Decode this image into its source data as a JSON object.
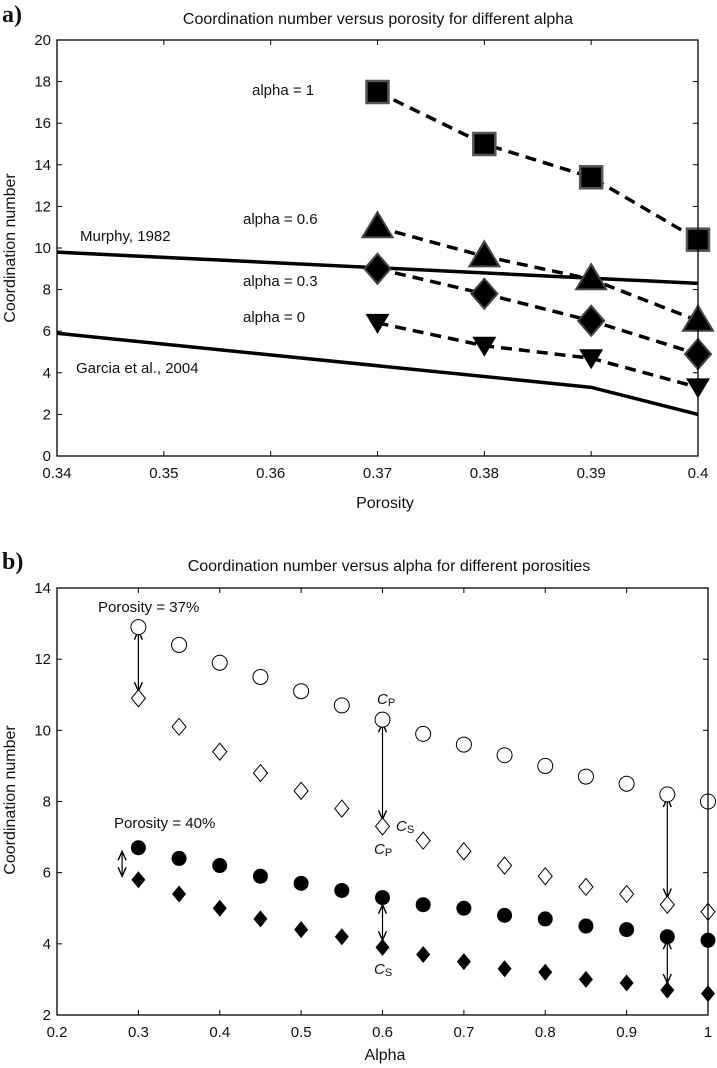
{
  "chart_data": [
    {
      "panel": "a)",
      "type": "line",
      "title": "Coordination number versus porosity for different alpha",
      "xlabel": "Porosity",
      "ylabel": "Coordination number",
      "xlim": [
        0.34,
        0.4
      ],
      "ylim": [
        0,
        20
      ],
      "xticks": [
        "0.34",
        "0.35",
        "0.36",
        "0.37",
        "0.38",
        "0.39",
        "0.4"
      ],
      "yticks": [
        "0",
        "2",
        "4",
        "6",
        "8",
        "10",
        "12",
        "14",
        "16",
        "18",
        "20"
      ],
      "grid": false,
      "series": [
        {
          "name": "alpha = 1",
          "style": "dashed",
          "marker": "square",
          "x": [
            0.37,
            0.38,
            0.39,
            0.4
          ],
          "y": [
            17.5,
            15.0,
            13.4,
            10.4
          ]
        },
        {
          "name": "alpha = 0.6",
          "style": "dashed",
          "marker": "triangle-up",
          "x": [
            0.37,
            0.38,
            0.39,
            0.4
          ],
          "y": [
            11.0,
            9.6,
            8.5,
            6.5
          ]
        },
        {
          "name": "alpha = 0.3",
          "style": "dashed",
          "marker": "diamond",
          "x": [
            0.37,
            0.38,
            0.39,
            0.4
          ],
          "y": [
            9.0,
            7.8,
            6.5,
            4.9
          ]
        },
        {
          "name": "alpha = 0",
          "style": "dashed",
          "marker": "triangle-down",
          "x": [
            0.37,
            0.38,
            0.39,
            0.4
          ],
          "y": [
            6.4,
            5.3,
            4.7,
            3.3
          ]
        },
        {
          "name": "Murphy, 1982",
          "style": "solid",
          "marker": "none",
          "x": [
            0.34,
            0.4
          ],
          "y": [
            9.8,
            8.3
          ]
        },
        {
          "name": "Garcia et al., 2004",
          "style": "solid",
          "marker": "none",
          "x": [
            0.34,
            0.39,
            0.4
          ],
          "y": [
            5.9,
            3.3,
            2.0
          ]
        }
      ]
    },
    {
      "panel": "b)",
      "type": "scatter",
      "title": "Coordination number versus alpha for different porosities",
      "xlabel": "Alpha",
      "ylabel": "Coordination number",
      "xlim": [
        0.2,
        1.0
      ],
      "ylim": [
        2,
        14
      ],
      "xticks": [
        "0.2",
        "0.3",
        "0.4",
        "0.5",
        "0.6",
        "0.7",
        "0.8",
        "0.9",
        "1"
      ],
      "yticks": [
        "2",
        "4",
        "6",
        "8",
        "10",
        "12",
        "14"
      ],
      "grid": false,
      "series": [
        {
          "marker": "open-circle",
          "x": [
            0.3,
            0.35,
            0.4,
            0.45,
            0.5,
            0.55,
            0.6,
            0.65,
            0.7,
            0.75,
            0.8,
            0.85,
            0.9,
            0.95,
            1.0
          ],
          "y": [
            12.9,
            12.4,
            11.9,
            11.5,
            11.1,
            10.7,
            10.3,
            9.9,
            9.6,
            9.3,
            9.0,
            8.7,
            8.5,
            8.2,
            8.0
          ]
        },
        {
          "marker": "open-diamond",
          "x": [
            0.3,
            0.35,
            0.4,
            0.45,
            0.5,
            0.55,
            0.6,
            0.65,
            0.7,
            0.75,
            0.8,
            0.85,
            0.9,
            0.95,
            1.0
          ],
          "y": [
            10.9,
            10.1,
            9.4,
            8.8,
            8.3,
            7.8,
            7.3,
            6.9,
            6.6,
            6.2,
            5.9,
            5.6,
            5.4,
            5.1,
            4.9
          ]
        },
        {
          "marker": "filled-circle",
          "x": [
            0.3,
            0.35,
            0.4,
            0.45,
            0.5,
            0.55,
            0.6,
            0.65,
            0.7,
            0.75,
            0.8,
            0.85,
            0.9,
            0.95,
            1.0
          ],
          "y": [
            6.7,
            6.4,
            6.2,
            5.9,
            5.7,
            5.5,
            5.3,
            5.1,
            5.0,
            4.8,
            4.7,
            4.5,
            4.4,
            4.2,
            4.1
          ]
        },
        {
          "marker": "filled-diamond",
          "x": [
            0.3,
            0.35,
            0.4,
            0.45,
            0.5,
            0.55,
            0.6,
            0.65,
            0.7,
            0.75,
            0.8,
            0.85,
            0.9,
            0.95,
            1.0
          ],
          "y": [
            5.8,
            5.4,
            5.0,
            4.7,
            4.4,
            4.2,
            3.9,
            3.7,
            3.5,
            3.3,
            3.2,
            3.0,
            2.9,
            2.7,
            2.6
          ]
        }
      ],
      "double_arrows": [
        {
          "x": 0.3,
          "y1": 12.8,
          "y2": 11.1
        },
        {
          "x": 0.28,
          "y1": 6.6,
          "y2": 5.9
        },
        {
          "x": 0.6,
          "y1": 10.2,
          "y2": 7.5
        },
        {
          "x": 0.6,
          "y1": 5.1,
          "y2": 4.1
        },
        {
          "x": 0.95,
          "y1": 8.1,
          "y2": 5.3
        },
        {
          "x": 0.95,
          "y1": 4.1,
          "y2": 2.9
        }
      ]
    }
  ],
  "labels": {
    "a": {
      "panel": "a)",
      "title": "Coordination number versus porosity for different alpha",
      "xlabel": "Porosity",
      "ylabel": "Coordination number",
      "alpha1": "alpha = 1",
      "alpha06": "alpha = 0.6",
      "alpha03": "alpha = 0.3",
      "alpha0": "alpha = 0",
      "murphy": "Murphy, 1982",
      "garcia": "Garcia et al., 2004"
    },
    "b": {
      "panel": "b)",
      "title": "Coordination number versus alpha for different porosities",
      "xlabel": "Alpha",
      "ylabel": "Coordination number",
      "por37": "Porosity = 37%",
      "por40": "Porosity = 40%",
      "c_letter": "C",
      "sub_p": "P",
      "sub_s": "S"
    }
  }
}
